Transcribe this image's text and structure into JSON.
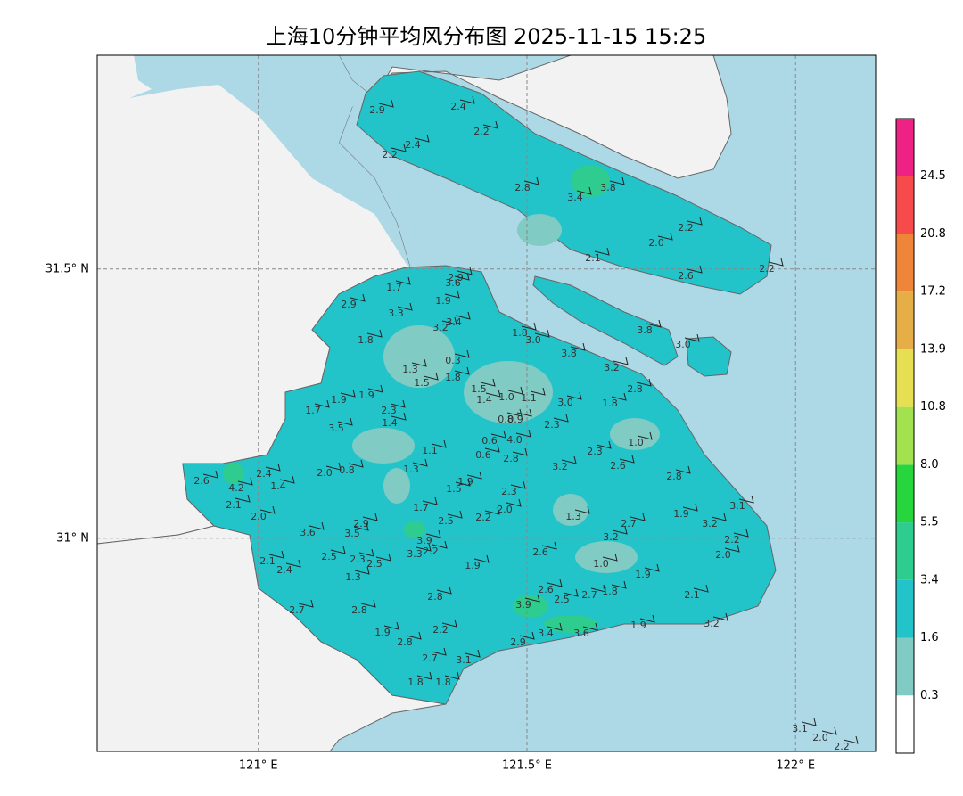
{
  "chart_data": {
    "type": "wind-map",
    "title": "上海10分钟平均风分布图 2025-11-15 15:25",
    "xlim": [
      120.7,
      122.149
    ],
    "ylim": [
      30.604,
      31.897
    ],
    "xticks": [
      {
        "value": 121,
        "label": "121° E"
      },
      {
        "value": 121.5,
        "label": "121.5° E"
      },
      {
        "value": 122,
        "label": "122° E"
      }
    ],
    "yticks": [
      {
        "value": 31,
        "label": "31° N"
      },
      {
        "value": 31.5,
        "label": "31.5° N"
      }
    ],
    "grid": true,
    "colorbar": {
      "levels": [
        0.3,
        1.6,
        3.4,
        5.5,
        {
          "value": 8,
          "label": "8.0"
        },
        10.8,
        13.9,
        17.2,
        20.8,
        24.5
      ],
      "colors": [
        "#ffffff",
        "#80cbc4",
        "#22c4c9",
        "#2ecc8e",
        "#26d63c",
        "#a3e24f",
        "#e6df52",
        "#e6ae47",
        "#ef8538",
        "#f74a4a",
        "#ee2185"
      ]
    },
    "values": [
      2.9,
      2.4,
      2.2,
      2.4,
      2.2,
      2.8,
      3.4,
      3.8,
      2.2,
      2.0,
      2.1,
      2.6,
      2.2,
      2.9,
      3.6,
      1.7,
      1.9,
      2.9,
      3.3,
      3.2,
      3.4,
      1.8,
      1.8,
      3.0,
      3.8,
      3.0,
      3.8,
      0.3,
      1.3,
      1.5,
      1.8,
      3.2,
      2.8,
      1.5,
      1.4,
      1.0,
      1.1,
      3.0,
      1.8,
      1.9,
      1.9,
      2.3,
      1.7,
      1.4,
      0.8,
      0.9,
      2.3,
      3.5,
      0.6,
      4.0,
      1.0,
      1.1,
      0.6,
      2.8,
      2.3,
      2.6,
      3.2,
      1.3,
      2.0,
      0.8,
      2.4,
      2.6,
      1.4,
      4.2,
      1.9,
      1.5,
      2.8,
      2.3,
      2.1,
      1.7,
      2.0,
      2.0,
      1.3,
      2.2,
      2.5,
      2.9,
      2.7,
      1.9,
      3.1,
      3.2,
      3.6,
      3.5,
      3.2,
      2.2,
      3.9,
      2.0,
      2.6,
      3.3,
      2.2,
      2.5,
      2.3,
      2.5,
      2.1,
      2.4,
      1.0,
      1.9,
      1.9,
      1.3,
      2.6,
      2.5,
      2.7,
      1.8,
      2.8,
      2.1,
      3.9,
      2.7,
      2.8,
      3.2,
      1.9,
      1.9,
      2.8,
      2.2,
      3.4,
      3.6,
      2.9,
      2.7,
      3.1,
      1.8,
      1.8,
      3.1,
      2.0,
      2.2
    ],
    "value_labels": [
      "2.9",
      "2.4",
      "2.2",
      "2.4",
      "2.2",
      "2.8",
      "3.4",
      "3.8",
      "2.2",
      "2.0",
      "2.1",
      "2.6",
      "2.2",
      "2.9",
      "3.6",
      "1.7",
      "1.9",
      "2.9",
      "3.3",
      "3.2",
      "3.4",
      "1.8",
      "1.8",
      "3.0",
      "3.8",
      "3.0",
      "3.8",
      "0.3",
      "1.3",
      "1.5",
      "1.8",
      "3.2",
      "2.8",
      "1.5",
      "1.4",
      "1.0",
      "1.1",
      "3.0",
      "1.8",
      "1.9",
      "1.9",
      "2.3",
      "1.7",
      "1.4",
      "0.8",
      "0.9",
      "2.3",
      "3.5",
      "0.6",
      "4.0",
      "1.0",
      "1.1",
      "0.6",
      "2.8",
      "2.3",
      "2.6",
      "3.2",
      "1.3",
      "2.0",
      "0.8",
      "2.4",
      "2.6",
      "1.4",
      "4.2",
      "1.9",
      "1.5",
      "2.8",
      "2.3",
      "2.1",
      "1.7",
      "2.0",
      "2.0",
      "1.3",
      "2.2",
      "2.5",
      "2.9",
      "2.7",
      "1.9",
      "3.1",
      "3.2",
      "3.6",
      "3.5",
      "3.2",
      "2.2",
      "3.9",
      "2.0",
      "2.6",
      "3.3",
      "2.2",
      "2.5",
      "2.3",
      "2.5",
      "2.1",
      "2.4",
      "1.0",
      "1.9",
      "1.9",
      "1.3",
      "2.6",
      "2.5",
      "2.7",
      "1.8",
      "2.8",
      "2.1",
      "3.9",
      "2.7",
      "2.8",
      "3.2",
      "1.9",
      "1.9",
      "2.8",
      "2.2",
      "3.4",
      "3.6",
      "2.9",
      "2.7",
      "3.1",
      "1.8",
      "1.8",
      "3.1",
      "2.0",
      "2.2"
    ]
  }
}
